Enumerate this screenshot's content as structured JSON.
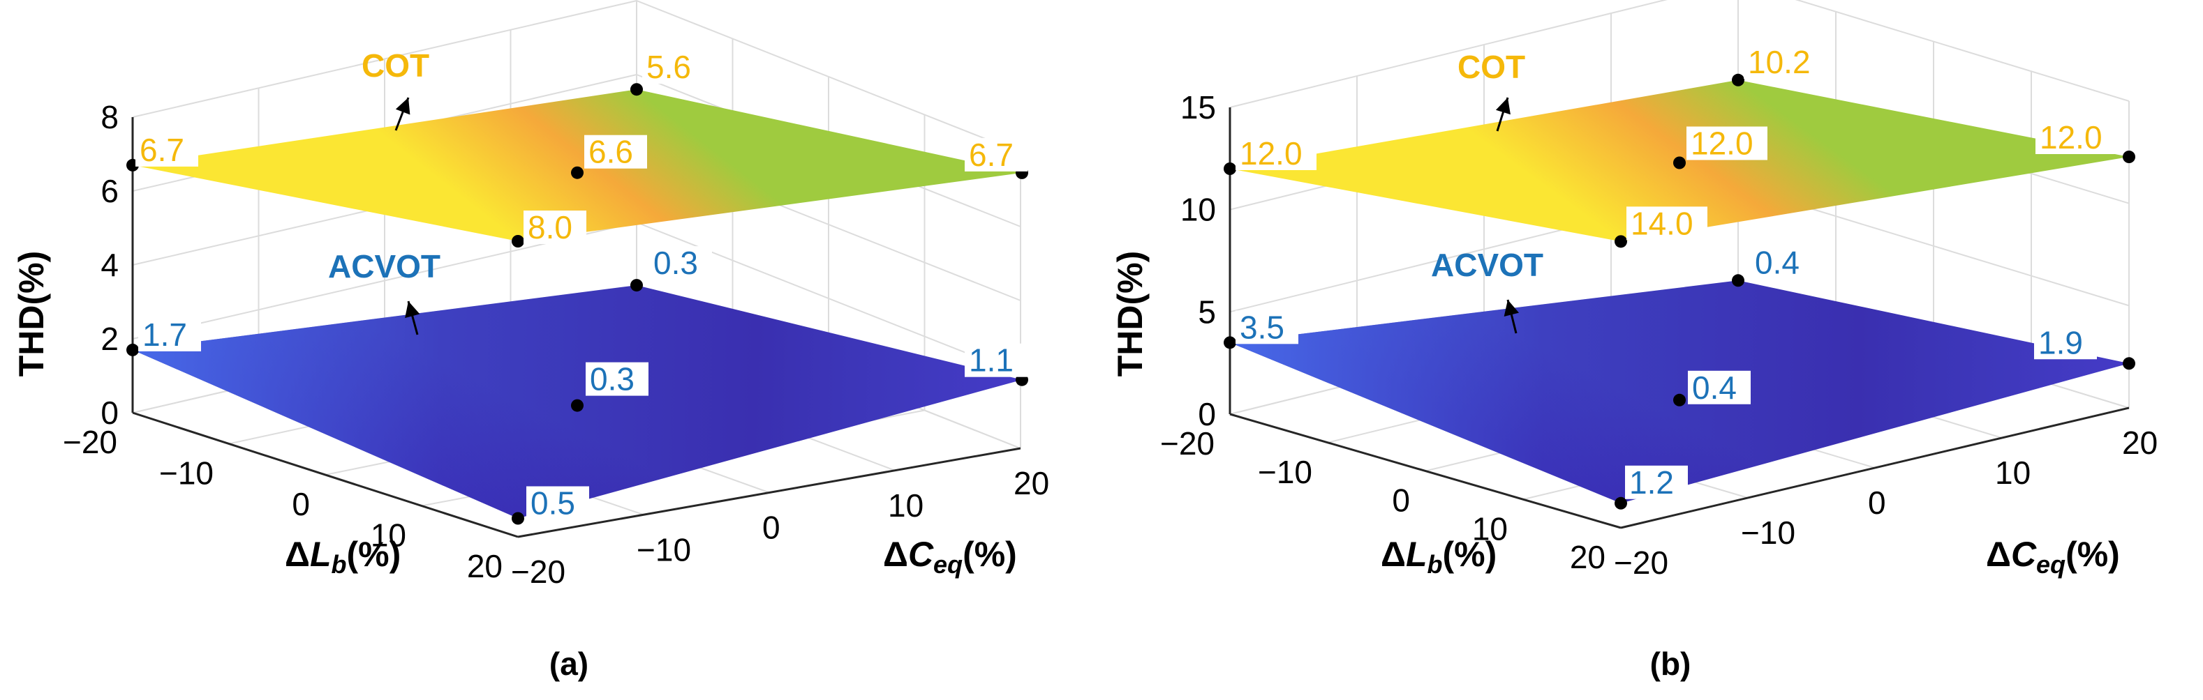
{
  "colors": {
    "cot": "#f5b80a",
    "acvot": "#1c72b8",
    "cot_top": "#9fcb3f",
    "cot_mid": "#f5a93a",
    "cot_low": "#fbe633",
    "acvot_light": "#4a72f0",
    "acvot_dark": "#3a2fb0"
  },
  "chart_data": [
    {
      "type": "surface",
      "panel_label": "(a)",
      "zlabel": "THD(%)",
      "xlabel": {
        "delta": "Δ",
        "var": "L",
        "sub": "b",
        "unit": "(%)"
      },
      "ylabel": {
        "delta": "Δ",
        "var": "C",
        "sub": "eq",
        "unit": "(%)"
      },
      "x_ticks": [
        "−20",
        "−10",
        "0",
        "10",
        "20"
      ],
      "y_ticks": [
        "−20",
        "−10",
        "0",
        "10",
        "20"
      ],
      "z_ticks": [
        "0",
        "2",
        "4",
        "6",
        "8"
      ],
      "zlim": [
        0,
        8
      ],
      "surfaces": [
        {
          "name": "COT",
          "points": [
            {
              "dL": -20,
              "dC": -20,
              "thd": 6.7,
              "label": "6.7"
            },
            {
              "dL": -20,
              "dC": 20,
              "thd": 5.6,
              "label": "5.6"
            },
            {
              "dL": 20,
              "dC": 20,
              "thd": 6.7,
              "label": "6.7"
            },
            {
              "dL": 20,
              "dC": -20,
              "thd": 8.0,
              "label": "8.0"
            },
            {
              "dL": 0,
              "dC": 0,
              "thd": 6.6,
              "label": "6.6"
            }
          ]
        },
        {
          "name": "ACVOT",
          "points": [
            {
              "dL": -20,
              "dC": -20,
              "thd": 1.7,
              "label": "1.7"
            },
            {
              "dL": -20,
              "dC": 20,
              "thd": 0.3,
              "label": "0.3"
            },
            {
              "dL": 20,
              "dC": 20,
              "thd": 1.1,
              "label": "1.1"
            },
            {
              "dL": 20,
              "dC": -20,
              "thd": 0.5,
              "label": "0.5"
            },
            {
              "dL": 0,
              "dC": 0,
              "thd": 0.3,
              "label": "0.3"
            }
          ]
        }
      ]
    },
    {
      "type": "surface",
      "panel_label": "(b)",
      "zlabel": "THD(%)",
      "xlabel": {
        "delta": "Δ",
        "var": "L",
        "sub": "b",
        "unit": "(%)"
      },
      "ylabel": {
        "delta": "Δ",
        "var": "C",
        "sub": "eq",
        "unit": "(%)"
      },
      "x_ticks": [
        "−20",
        "−10",
        "0",
        "10",
        "20"
      ],
      "y_ticks": [
        "−20",
        "−10",
        "0",
        "10",
        "20"
      ],
      "z_ticks": [
        "0",
        "5",
        "10",
        "15"
      ],
      "zlim": [
        0,
        15
      ],
      "surfaces": [
        {
          "name": "COT",
          "points": [
            {
              "dL": -20,
              "dC": -20,
              "thd": 12.0,
              "label": "12.0"
            },
            {
              "dL": -20,
              "dC": 20,
              "thd": 10.2,
              "label": "10.2"
            },
            {
              "dL": 20,
              "dC": 20,
              "thd": 12.0,
              "label": "12.0"
            },
            {
              "dL": 20,
              "dC": -20,
              "thd": 14.0,
              "label": "14.0"
            },
            {
              "dL": 0,
              "dC": 0,
              "thd": 12.0,
              "label": "12.0"
            }
          ]
        },
        {
          "name": "ACVOT",
          "points": [
            {
              "dL": -20,
              "dC": -20,
              "thd": 3.5,
              "label": "3.5"
            },
            {
              "dL": -20,
              "dC": 20,
              "thd": 0.4,
              "label": "0.4"
            },
            {
              "dL": 20,
              "dC": 20,
              "thd": 1.9,
              "label": "1.9"
            },
            {
              "dL": 20,
              "dC": -20,
              "thd": 1.2,
              "label": "1.2"
            },
            {
              "dL": 0,
              "dC": 0,
              "thd": 0.4,
              "label": "0.4"
            }
          ]
        }
      ]
    }
  ]
}
